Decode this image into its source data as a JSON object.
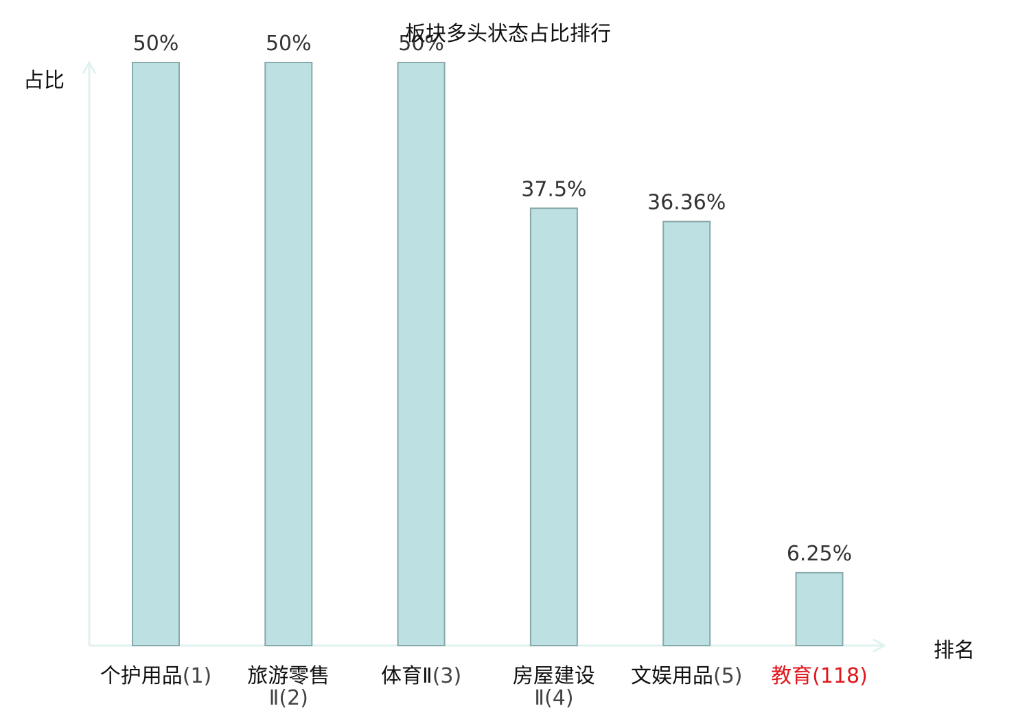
{
  "chart_data": {
    "type": "bar",
    "title": "板块多头状态占比排行",
    "ylabel": "占比",
    "xlabel": "排名",
    "categories": [
      {
        "name": "个护用品",
        "rank": "(1)",
        "highlight": false
      },
      {
        "name": "旅游零售",
        "name2": "Ⅱ",
        "rank": "(2)",
        "highlight": false
      },
      {
        "name": "体育Ⅱ",
        "rank": "(3)",
        "highlight": false
      },
      {
        "name": "房屋建设",
        "name2": "Ⅱ",
        "rank": "(4)",
        "highlight": false
      },
      {
        "name": "文娱用品",
        "rank": "(5)",
        "highlight": false
      },
      {
        "name": "教育",
        "rank": "(118)",
        "highlight": true
      }
    ],
    "values": [
      50,
      50,
      50,
      37.5,
      36.36,
      6.25
    ],
    "value_labels": [
      "50%",
      "50%",
      "50%",
      "37.5%",
      "36.36%",
      "6.25%"
    ],
    "ylim": [
      0,
      50
    ],
    "grid": false,
    "colors": {
      "bar_fill": "#bde0e3",
      "bar_stroke": "#8aa7aa",
      "axis": "#dff2ef",
      "text": "#111111",
      "value_text": "#333333",
      "highlight": "#e0161b"
    }
  }
}
